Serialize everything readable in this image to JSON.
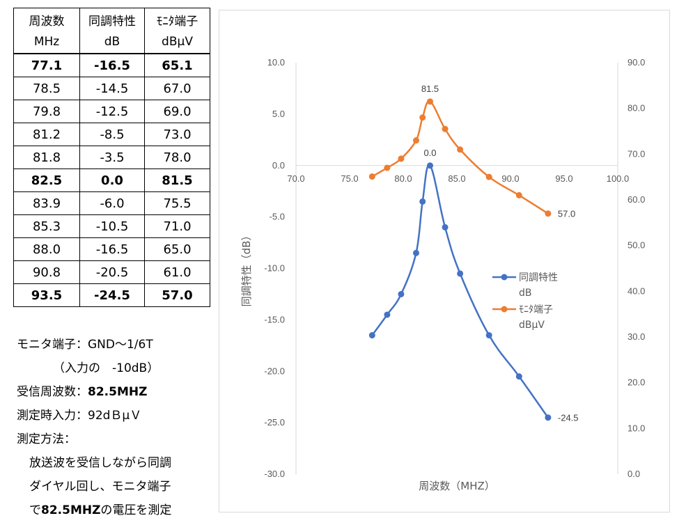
{
  "table": {
    "header1": [
      "周波数",
      "同調特性",
      "ﾓﾆﾀ端子"
    ],
    "header2": [
      "MHz",
      "dB",
      "dBμV"
    ],
    "rows": [
      {
        "freq": "77.1",
        "tune": "-16.5",
        "mon": "65.1",
        "bold": true
      },
      {
        "freq": "78.5",
        "tune": "-14.5",
        "mon": "67.0",
        "bold": false
      },
      {
        "freq": "79.8",
        "tune": "-12.5",
        "mon": "69.0",
        "bold": false
      },
      {
        "freq": "81.2",
        "tune": "-8.5",
        "mon": "73.0",
        "bold": false
      },
      {
        "freq": "81.8",
        "tune": "-3.5",
        "mon": "78.0",
        "bold": false
      },
      {
        "freq": "82.5",
        "tune": "0.0",
        "mon": "81.5",
        "bold": true
      },
      {
        "freq": "83.9",
        "tune": "-6.0",
        "mon": "75.5",
        "bold": false
      },
      {
        "freq": "85.3",
        "tune": "-10.5",
        "mon": "71.0",
        "bold": false
      },
      {
        "freq": "88.0",
        "tune": "-16.5",
        "mon": "65.0",
        "bold": false
      },
      {
        "freq": "90.8",
        "tune": "-20.5",
        "mon": "61.0",
        "bold": false
      },
      {
        "freq": "93.5",
        "tune": "-24.5",
        "mon": "57.0",
        "bold": true
      }
    ]
  },
  "notes": {
    "line1": "モニタ端子：GND～1/6T",
    "line2": "（入力の　-10dB）",
    "line3_label": "受信周波数：",
    "line3_value": "82.5MHZ",
    "line4": "測定時入力：92dＢμＶ",
    "line5": "測定方法：",
    "line6": "放送波を受信しながら同調",
    "line7": "ダイヤル回し、モニタ端子",
    "line8_pre": "で",
    "line8_bold": "82.5MHZ",
    "line8_post": "の電圧を測定"
  },
  "chart_data": {
    "type": "scatter",
    "xlabel": "周波数（MHZ）",
    "ylabel": "同調特性（dB）",
    "xlim": [
      70,
      100
    ],
    "ylim": [
      -30,
      10
    ],
    "y2lim": [
      0,
      90
    ],
    "x_ticks": [
      "70.0",
      "75.0",
      "80.0",
      "85.0",
      "90.0",
      "95.0",
      "100.0"
    ],
    "y_ticks": [
      "10.0",
      "5.0",
      "0.0",
      "-5.0",
      "-10.0",
      "-15.0",
      "-20.0",
      "-25.0",
      "-30.0"
    ],
    "y2_ticks": [
      "90.0",
      "80.0",
      "70.0",
      "60.0",
      "50.0",
      "40.0",
      "30.0",
      "20.0",
      "10.0",
      "0.0"
    ],
    "grid": false,
    "legend_position": "right",
    "series": [
      {
        "name": "同調特性",
        "name_line2": "dB",
        "axis": "left",
        "color": "#4472c4",
        "x": [
          77.1,
          78.5,
          79.8,
          81.2,
          81.8,
          82.5,
          83.9,
          85.3,
          88.0,
          90.8,
          93.5
        ],
        "y": [
          -16.5,
          -14.5,
          -12.5,
          -8.5,
          -3.5,
          0.0,
          -6.0,
          -10.5,
          -16.5,
          -20.5,
          -24.5
        ],
        "labels": [
          {
            "x": 82.5,
            "y": 0.0,
            "text": "0.0"
          },
          {
            "x": 93.5,
            "y": -24.5,
            "text": "-24.5"
          }
        ]
      },
      {
        "name": "ﾓﾆﾀ端子",
        "name_line2": "dBμV",
        "axis": "right",
        "color": "#ed7d31",
        "x": [
          77.1,
          78.5,
          79.8,
          81.2,
          81.8,
          82.5,
          83.9,
          85.3,
          88.0,
          90.8,
          93.5
        ],
        "y": [
          65.1,
          67.0,
          69.0,
          73.0,
          78.0,
          81.5,
          75.5,
          71.0,
          65.0,
          61.0,
          57.0
        ],
        "labels": [
          {
            "x": 82.5,
            "y": 81.5,
            "text": "81.5"
          },
          {
            "x": 93.5,
            "y": 57.0,
            "text": "57.0"
          }
        ]
      }
    ]
  }
}
